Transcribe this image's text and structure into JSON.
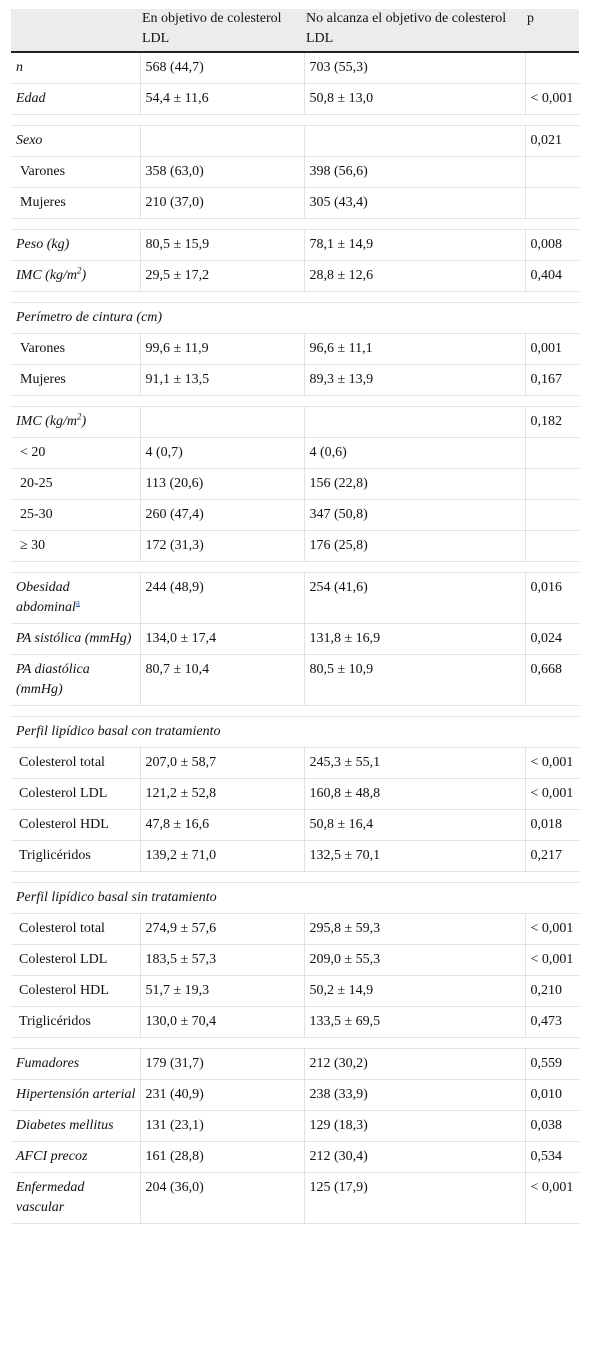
{
  "header": {
    "col0": "",
    "col1": "En objetivo de colesterol LDL",
    "col2": "No alcanza el objetivo de colesterol LDL",
    "col3": "p"
  },
  "rows": [
    {
      "type": "data",
      "style": "main",
      "label": "n",
      "a": "568 (44,7)",
      "b": "703 (55,3)",
      "p": ""
    },
    {
      "type": "data",
      "style": "main",
      "label": "Edad",
      "a": "54,4 ± 11,6",
      "b": "50,8 ± 13,0",
      "p": "< 0,001"
    },
    {
      "type": "spacer"
    },
    {
      "type": "data",
      "style": "main",
      "label": "Sexo",
      "a": "",
      "b": "",
      "p": "0,021"
    },
    {
      "type": "data",
      "style": "sub",
      "label": "Varones",
      "a": "358 (63,0)",
      "b": "398 (56,6)",
      "p": ""
    },
    {
      "type": "data",
      "style": "sub",
      "label": "Mujeres",
      "a": "210 (37,0)",
      "b": "305 (43,4)",
      "p": ""
    },
    {
      "type": "spacer"
    },
    {
      "type": "data",
      "style": "main",
      "label": "Peso (kg)",
      "a": "80,5 ± 15,9",
      "b": "78,1 ± 14,9",
      "p": "0,008"
    },
    {
      "type": "data",
      "style": "main",
      "label": "IMC (kg/m",
      "sup": "2",
      "label_end": ")",
      "a": "29,5 ± 17,2",
      "b": "28,8 ± 12,6",
      "p": "0,404"
    },
    {
      "type": "spacer"
    },
    {
      "type": "section",
      "label": "Perímetro de cintura (cm)"
    },
    {
      "type": "data",
      "style": "sub",
      "label": "Varones",
      "a": "99,6 ± 11,9",
      "b": "96,6 ± 11,1",
      "p": "0,001"
    },
    {
      "type": "data",
      "style": "sub",
      "label": "Mujeres",
      "a": "91,1 ± 13,5",
      "b": "89,3 ± 13,9",
      "p": "0,167"
    },
    {
      "type": "spacer"
    },
    {
      "type": "data",
      "style": "main",
      "label": "IMC (kg/m",
      "sup": "2",
      "label_end": ")",
      "a": "",
      "b": "",
      "p": "0,182"
    },
    {
      "type": "data",
      "style": "sub",
      "label": "< 20",
      "a": "4 (0,7)",
      "b": "4 (0,6)",
      "p": ""
    },
    {
      "type": "data",
      "style": "sub",
      "label": "20-25",
      "a": "113 (20,6)",
      "b": "156 (22,8)",
      "p": ""
    },
    {
      "type": "data",
      "style": "sub",
      "label": "25-30",
      "a": "260 (47,4)",
      "b": "347 (50,8)",
      "p": ""
    },
    {
      "type": "data",
      "style": "sub",
      "label": "≥ 30",
      "a": "172 (31,3)",
      "b": "176 (25,8)",
      "p": ""
    },
    {
      "type": "spacer"
    },
    {
      "type": "data",
      "style": "main",
      "label": "Obesidad abdominal",
      "footnote": "a",
      "a": "244 (48,9)",
      "b": "254 (41,6)",
      "p": "0,016"
    },
    {
      "type": "data",
      "style": "main",
      "label": "PA sistólica (mmHg)",
      "a": "134,0 ± 17,4",
      "b": "131,8 ± 16,9",
      "p": "0,024"
    },
    {
      "type": "data",
      "style": "main",
      "label": "PA diastólica (mmHg)",
      "a": "80,7 ± 10,4",
      "b": "80,5 ± 10,9",
      "p": "0,668"
    },
    {
      "type": "spacer"
    },
    {
      "type": "section",
      "label": "Perfil lipídico basal con tratamiento"
    },
    {
      "type": "data",
      "style": "subw",
      "label": "Colesterol total",
      "a": "207,0 ± 58,7",
      "b": "245,3 ± 55,1",
      "p": "< 0,001"
    },
    {
      "type": "data",
      "style": "subw",
      "label": "Colesterol LDL",
      "a": "121,2 ± 52,8",
      "b": "160,8 ± 48,8",
      "p": "< 0,001"
    },
    {
      "type": "data",
      "style": "subw",
      "label": "Colesterol HDL",
      "a": "47,8 ± 16,6",
      "b": "50,8 ± 16,4",
      "p": "0,018"
    },
    {
      "type": "data",
      "style": "subw",
      "label": "Triglicéridos",
      "a": "139,2 ± 71,0",
      "b": "132,5 ± 70,1",
      "p": "0,217"
    },
    {
      "type": "spacer"
    },
    {
      "type": "section",
      "label": "Perfil lipídico basal sin tratamiento"
    },
    {
      "type": "data",
      "style": "subw",
      "label": "Colesterol total",
      "a": "274,9 ± 57,6",
      "b": "295,8 ± 59,3",
      "p": "< 0,001"
    },
    {
      "type": "data",
      "style": "subw",
      "label": "Colesterol LDL",
      "a": "183,5 ± 57,3",
      "b": "209,0 ± 55,3",
      "p": "< 0,001"
    },
    {
      "type": "data",
      "style": "subw",
      "label": "Colesterol HDL",
      "a": "51,7 ± 19,3",
      "b": "50,2 ± 14,9",
      "p": "0,210"
    },
    {
      "type": "data",
      "style": "subw",
      "label": "Triglicéridos",
      "a": "130,0 ± 70,4",
      "b": "133,5 ± 69,5",
      "p": "0,473"
    },
    {
      "type": "spacer"
    },
    {
      "type": "data",
      "style": "main",
      "label": "Fumadores",
      "a": "179 (31,7)",
      "b": "212 (30,2)",
      "p": "0,559"
    },
    {
      "type": "data",
      "style": "main",
      "label": "Hipertensión arterial",
      "a": "231 (40,9)",
      "b": "238 (33,9)",
      "p": "0,010"
    },
    {
      "type": "data",
      "style": "main",
      "label": "Diabetes mellitus",
      "a": "131 (23,1)",
      "b": "129 (18,3)",
      "p": "0,038"
    },
    {
      "type": "data",
      "style": "main",
      "label": "AFCI precoz",
      "a": "161 (28,8)",
      "b": "212 (30,4)",
      "p": "0,534"
    },
    {
      "type": "data",
      "style": "main",
      "label": "Enfermedad vascular",
      "a": "204 (36,0)",
      "b": "125 (17,9)",
      "p": "< 0,001"
    }
  ]
}
